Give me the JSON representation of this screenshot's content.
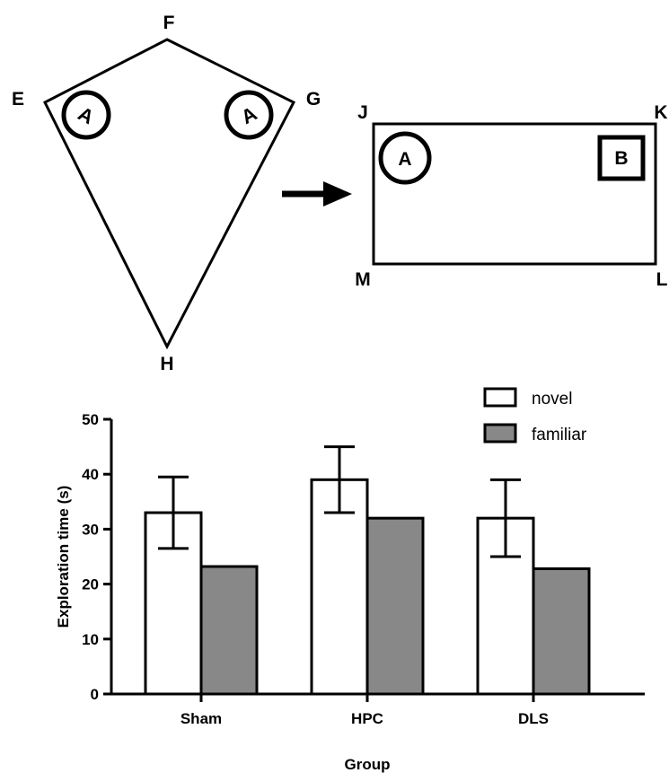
{
  "diagram": {
    "kite": {
      "vertices": {
        "F": "F",
        "E": "E",
        "G": "G",
        "H": "H"
      },
      "objects": [
        "A",
        "A"
      ]
    },
    "rectangle": {
      "vertices": {
        "J": "J",
        "K": "K",
        "M": "M",
        "L": "L"
      },
      "objects": [
        "A",
        "B"
      ]
    }
  },
  "chart_data": {
    "type": "bar",
    "categories": [
      "Sham",
      "HPC",
      "DLS"
    ],
    "series": [
      {
        "name": "novel",
        "values": [
          33,
          39,
          32
        ],
        "error": [
          6.5,
          6,
          7
        ],
        "color": "#ffffff"
      },
      {
        "name": "familiar",
        "values": [
          23.2,
          32,
          22.8
        ],
        "error": [
          0,
          0,
          0
        ],
        "color": "#888888"
      }
    ],
    "title": "",
    "xlabel": "Group",
    "ylabel": "Exploration time (s)",
    "ylim": [
      0,
      50
    ],
    "yticks": [
      "0",
      "10",
      "20",
      "30",
      "40",
      "50"
    ],
    "grid": false,
    "legend": "top-right"
  }
}
